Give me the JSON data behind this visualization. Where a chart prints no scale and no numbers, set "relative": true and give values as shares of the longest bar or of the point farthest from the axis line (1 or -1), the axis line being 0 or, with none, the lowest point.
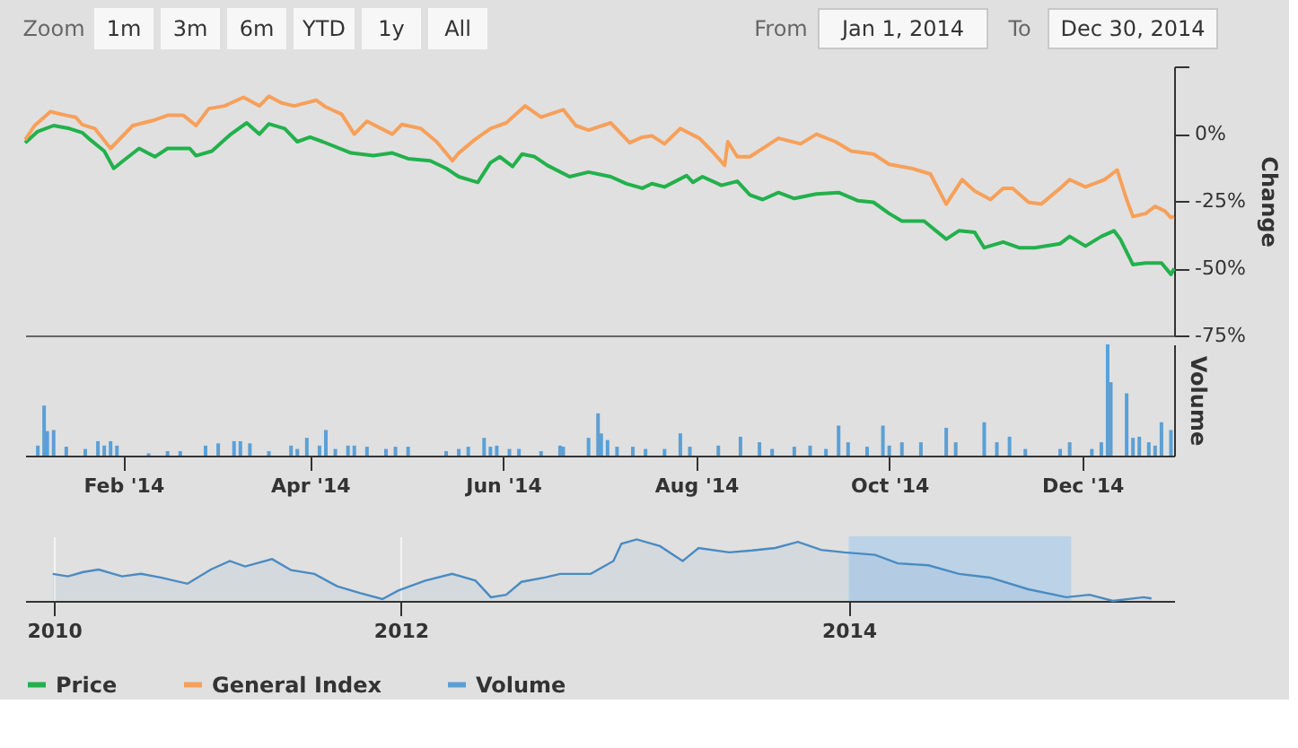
{
  "chart_data": [
    {
      "type": "line",
      "ylabel": "Change",
      "legend": "bottom",
      "tick_labels": "y",
      "marker": "none",
      "line_style": "solid",
      "annotations": [
        "Zoom",
        "1m",
        "3m",
        "6m",
        "YTD",
        "1y",
        "All",
        "From",
        "Jan 1, 2014",
        "To",
        "Dec 30, 2014"
      ],
      "xlim": [
        "2014-01-01",
        "2014-12-30"
      ],
      "ylim": [
        -75,
        25
      ],
      "yticks": [
        {
          "value": 25,
          "label": null
        },
        {
          "value": 0,
          "label": "0%"
        },
        {
          "value": -25,
          "label": "-25%"
        },
        {
          "value": -50,
          "label": "-50%"
        },
        {
          "value": -75,
          "label": "-75%"
        }
      ],
      "series": [
        {
          "name": "Price",
          "color": "#22b14c",
          "x": [
            "2014-01-01",
            "2014-01-05",
            "2014-01-10",
            "2014-01-15",
            "2014-01-19",
            "2014-01-21",
            "2014-01-26",
            "2014-01-29",
            "2014-02-01",
            "2014-02-06",
            "2014-02-11",
            "2014-02-15",
            "2014-02-22",
            "2014-02-24",
            "2014-03-01",
            "2014-03-07",
            "2014-03-12",
            "2014-03-16",
            "2014-03-19",
            "2014-03-24",
            "2014-03-28",
            "2014-04-01",
            "2014-04-05",
            "2014-04-14",
            "2014-04-21",
            "2014-04-27",
            "2014-05-02",
            "2014-05-09",
            "2014-05-14",
            "2014-05-18",
            "2014-05-24",
            "2014-05-28",
            "2014-05-31",
            "2014-06-04",
            "2014-06-07",
            "2014-06-11",
            "2014-06-15",
            "2014-06-22",
            "2014-06-28",
            "2014-07-05",
            "2014-07-10",
            "2014-07-15",
            "2014-07-18",
            "2014-07-22",
            "2014-07-29",
            "2014-07-31",
            "2014-08-03",
            "2014-08-09",
            "2014-08-14",
            "2014-08-18",
            "2014-08-22",
            "2014-08-27",
            "2014-09-01",
            "2014-09-08",
            "2014-09-15",
            "2014-09-21",
            "2014-09-26",
            "2014-10-01",
            "2014-10-05",
            "2014-10-12",
            "2014-10-19",
            "2014-10-23",
            "2014-10-28",
            "2014-10-31",
            "2014-11-06",
            "2014-11-11",
            "2014-11-16",
            "2014-11-24",
            "2014-11-27",
            "2014-12-02",
            "2014-12-07",
            "2014-12-11",
            "2014-12-13",
            "2014-12-17",
            "2014-12-21",
            "2014-12-26",
            "2014-12-29",
            "2014-12-30"
          ],
          "values": [
            -3.4,
            0.8,
            3.0,
            1.9,
            0.4,
            -1.7,
            -6.5,
            -12.9,
            -10.1,
            -5.5,
            -8.6,
            -5.5,
            -5.5,
            -8.2,
            -6.5,
            -0.2,
            4.0,
            -0.2,
            3.6,
            1.9,
            -3.0,
            -1.3,
            -3.0,
            -7.2,
            -8.2,
            -7.2,
            -9.3,
            -10.1,
            -12.9,
            -16.0,
            -18.1,
            -10.8,
            -8.6,
            -12.2,
            -7.6,
            -8.6,
            -11.8,
            -16.0,
            -14.3,
            -16.0,
            -18.6,
            -20.3,
            -18.6,
            -19.8,
            -15.6,
            -18.1,
            -16.0,
            -19.2,
            -17.7,
            -22.8,
            -24.5,
            -21.9,
            -24.1,
            -22.4,
            -21.9,
            -24.9,
            -25.5,
            -29.7,
            -32.5,
            -32.5,
            -39.2,
            -36.1,
            -36.7,
            -42.4,
            -40.3,
            -42.4,
            -42.4,
            -40.9,
            -38.2,
            -41.8,
            -38.2,
            -36.1,
            -39.2,
            -48.7,
            -48.1,
            -48.1,
            -52.3,
            -50.2
          ]
        },
        {
          "name": "General Index",
          "color": "#f7a05a",
          "x": [
            "2014-01-01",
            "2014-01-04",
            "2014-01-09",
            "2014-01-11",
            "2014-01-14",
            "2014-01-17",
            "2014-01-19",
            "2014-01-23",
            "2014-01-28",
            "2014-02-04",
            "2014-02-11",
            "2014-02-15",
            "2014-02-20",
            "2014-02-24",
            "2014-02-28",
            "2014-03-05",
            "2014-03-11",
            "2014-03-16",
            "2014-03-19",
            "2014-03-23",
            "2014-03-27",
            "2014-04-03",
            "2014-04-06",
            "2014-04-11",
            "2014-04-15",
            "2014-04-19",
            "2014-04-27",
            "2014-04-30",
            "2014-05-06",
            "2014-05-11",
            "2014-05-16",
            "2014-05-18",
            "2014-05-23",
            "2014-05-28",
            "2014-06-02",
            "2014-06-08",
            "2014-06-13",
            "2014-06-20",
            "2014-06-24",
            "2014-06-28",
            "2014-07-05",
            "2014-07-11",
            "2014-07-15",
            "2014-07-18",
            "2014-07-22",
            "2014-07-27",
            "2014-08-02",
            "2014-08-06",
            "2014-08-10",
            "2014-08-11",
            "2014-08-14",
            "2014-08-18",
            "2014-08-27",
            "2014-09-03",
            "2014-09-08",
            "2014-09-14",
            "2014-09-19",
            "2014-09-26",
            "2014-10-01",
            "2014-10-08",
            "2014-10-14",
            "2014-10-19",
            "2014-10-24",
            "2014-10-28",
            "2014-11-02",
            "2014-11-06",
            "2014-11-09",
            "2014-11-14",
            "2014-11-18",
            "2014-11-24",
            "2014-11-27",
            "2014-12-02",
            "2014-12-08",
            "2014-12-12",
            "2014-12-15",
            "2014-12-17",
            "2014-12-21",
            "2014-12-24",
            "2014-12-27",
            "2014-12-29",
            "2014-12-30"
          ],
          "values": [
            -2.3,
            3.0,
            8.2,
            7.6,
            6.8,
            6.1,
            3.4,
            1.9,
            -5.5,
            3.0,
            5.1,
            6.8,
            6.8,
            3.0,
            9.3,
            10.3,
            13.5,
            10.3,
            13.9,
            11.4,
            10.3,
            12.4,
            9.9,
            7.2,
            -0.2,
            4.6,
            -0.2,
            3.4,
            1.9,
            -3.0,
            -10.1,
            -7.2,
            -2.3,
            1.9,
            4.0,
            10.3,
            6.1,
            8.9,
            3.0,
            1.3,
            4.0,
            -3.4,
            -1.3,
            -0.8,
            -3.8,
            1.9,
            -1.7,
            -6.5,
            -11.8,
            -3.0,
            -8.6,
            -8.6,
            -1.7,
            -3.8,
            -0.2,
            -3.0,
            -6.5,
            -7.6,
            -11.4,
            -12.9,
            -15.0,
            -26.2,
            -17.1,
            -21.3,
            -24.5,
            -20.3,
            -20.3,
            -25.5,
            -26.2,
            -20.3,
            -17.1,
            -19.8,
            -17.1,
            -13.5,
            -24.5,
            -30.8,
            -29.7,
            -27.0,
            -28.7,
            -31.2,
            -30.8
          ]
        }
      ]
    },
    {
      "type": "bar",
      "relative": true,
      "ylabel": "Volume",
      "tick_labels": "x",
      "xlim": [
        "2014-01-01",
        "2014-12-30"
      ],
      "xticks": [
        {
          "value": "2014-02-01",
          "label": "Feb '14"
        },
        {
          "value": "2014-04-01",
          "label": "Apr '14"
        },
        {
          "value": "2014-06-01",
          "label": "Jun '14"
        },
        {
          "value": "2014-08-01",
          "label": "Aug '14"
        },
        {
          "value": "2014-10-01",
          "label": "Oct '14"
        },
        {
          "value": "2014-12-01",
          "label": "Dec '14"
        }
      ],
      "x": [
        "2014-01-05",
        "2014-01-07",
        "2014-01-08",
        "2014-01-10",
        "2014-01-14",
        "2014-01-20",
        "2014-01-24",
        "2014-01-26",
        "2014-01-28",
        "2014-01-30",
        "2014-02-09",
        "2014-02-15",
        "2014-02-19",
        "2014-02-27",
        "2014-03-03",
        "2014-03-08",
        "2014-03-10",
        "2014-03-13",
        "2014-03-19",
        "2014-03-26",
        "2014-03-28",
        "2014-03-31",
        "2014-04-04",
        "2014-04-06",
        "2014-04-09",
        "2014-04-13",
        "2014-04-15",
        "2014-04-19",
        "2014-04-25",
        "2014-04-28",
        "2014-05-02",
        "2014-05-14",
        "2014-05-18",
        "2014-05-21",
        "2014-05-26",
        "2014-05-28",
        "2014-05-30",
        "2014-06-03",
        "2014-06-06",
        "2014-06-13",
        "2014-06-19",
        "2014-06-20",
        "2014-06-28",
        "2014-07-01",
        "2014-07-02",
        "2014-07-04",
        "2014-07-07",
        "2014-07-12",
        "2014-07-16",
        "2014-07-22",
        "2014-07-27",
        "2014-07-30",
        "2014-08-08",
        "2014-08-15",
        "2014-08-21",
        "2014-08-25",
        "2014-09-01",
        "2014-09-06",
        "2014-09-11",
        "2014-09-15",
        "2014-09-18",
        "2014-09-24",
        "2014-09-29",
        "2014-10-01",
        "2014-10-05",
        "2014-10-11",
        "2014-10-19",
        "2014-10-22",
        "2014-10-31",
        "2014-11-04",
        "2014-11-08",
        "2014-11-13",
        "2014-11-24",
        "2014-11-27",
        "2014-12-04",
        "2014-12-07",
        "2014-12-09",
        "2014-12-10",
        "2014-12-15",
        "2014-12-17",
        "2014-12-19",
        "2014-12-22",
        "2014-12-24",
        "2014-12-26",
        "2014-12-29"
      ],
      "series": [
        {
          "name": "Volume",
          "color": "#5aa0d6",
          "values": [
            0.09,
            0.45,
            0.22,
            0.23,
            0.08,
            0.06,
            0.13,
            0.09,
            0.13,
            0.09,
            0.02,
            0.04,
            0.04,
            0.09,
            0.11,
            0.13,
            0.13,
            0.11,
            0.04,
            0.09,
            0.06,
            0.16,
            0.09,
            0.23,
            0.06,
            0.09,
            0.09,
            0.08,
            0.06,
            0.08,
            0.08,
            0.04,
            0.06,
            0.08,
            0.16,
            0.08,
            0.09,
            0.06,
            0.06,
            0.04,
            0.09,
            0.08,
            0.16,
            0.38,
            0.2,
            0.14,
            0.08,
            0.08,
            0.06,
            0.06,
            0.2,
            0.08,
            0.09,
            0.17,
            0.12,
            0.06,
            0.08,
            0.09,
            0.06,
            0.27,
            0.12,
            0.08,
            0.27,
            0.09,
            0.12,
            0.12,
            0.25,
            0.12,
            0.3,
            0.12,
            0.17,
            0.06,
            0.06,
            0.12,
            0.06,
            0.12,
            1,
            0.66,
            0.56,
            0.16,
            0.17,
            0.12,
            0.09,
            0.3,
            0.23
          ]
        }
      ]
    },
    {
      "type": "area",
      "relative": true,
      "grid": "x",
      "xlim": [
        "2010-04-28",
        "2015-06-16"
      ],
      "xticks": [
        {
          "value": "2010-06-14",
          "label": "2010"
        },
        {
          "value": "2012-01-01",
          "label": "2012"
        },
        {
          "value": "2014-01-01",
          "label": "2014"
        }
      ],
      "bands": [
        {
          "axis": "x",
          "from": "2014-01-01",
          "to": "2014-12-30",
          "color": "#b8d0e8"
        }
      ],
      "x": [
        "2010-06-12",
        "2010-07-07",
        "2010-08-01",
        "2010-08-26",
        "2010-10-03",
        "2010-11-03",
        "2010-12-05",
        "2011-01-18",
        "2011-02-25",
        "2011-03-28",
        "2011-04-22",
        "2011-06-05",
        "2011-07-06",
        "2011-08-13",
        "2011-09-19",
        "2011-10-26",
        "2011-12-02",
        "2011-12-28",
        "2012-02-10",
        "2012-03-25",
        "2012-05-02",
        "2012-05-27",
        "2012-06-21",
        "2012-07-16",
        "2012-08-23",
        "2012-09-17",
        "2012-11-06",
        "2012-12-13",
        "2012-12-26",
        "2013-01-20",
        "2013-02-27",
        "2013-04-05",
        "2013-05-01",
        "2013-06-20",
        "2013-07-27",
        "2013-09-03",
        "2013-10-10",
        "2013-11-17",
        "2013-12-25",
        "2014-02-13",
        "2014-03-22",
        "2014-05-11",
        "2014-06-30",
        "2014-08-19",
        "2014-10-21",
        "2014-12-22",
        "2015-01-29",
        "2015-03-08",
        "2015-04-27",
        "2015-05-10"
      ],
      "series": [
        {
          "color": "#4a8bc2",
          "values": [
            0.44,
            0.4,
            0.47,
            0.51,
            0.4,
            0.44,
            0.38,
            0.28,
            0.51,
            0.65,
            0.56,
            0.68,
            0.5,
            0.44,
            0.24,
            0.13,
            0.03,
            0.17,
            0.33,
            0.44,
            0.33,
            0.06,
            0.1,
            0.31,
            0.38,
            0.44,
            0.44,
            0.65,
            0.93,
            1,
            0.89,
            0.65,
            0.86,
            0.79,
            0.82,
            0.86,
            0.96,
            0.83,
            0.79,
            0.75,
            0.61,
            0.58,
            0.44,
            0.38,
            0.19,
            0.06,
            0.1,
            0,
            0.06,
            0.04
          ]
        }
      ]
    }
  ]
}
